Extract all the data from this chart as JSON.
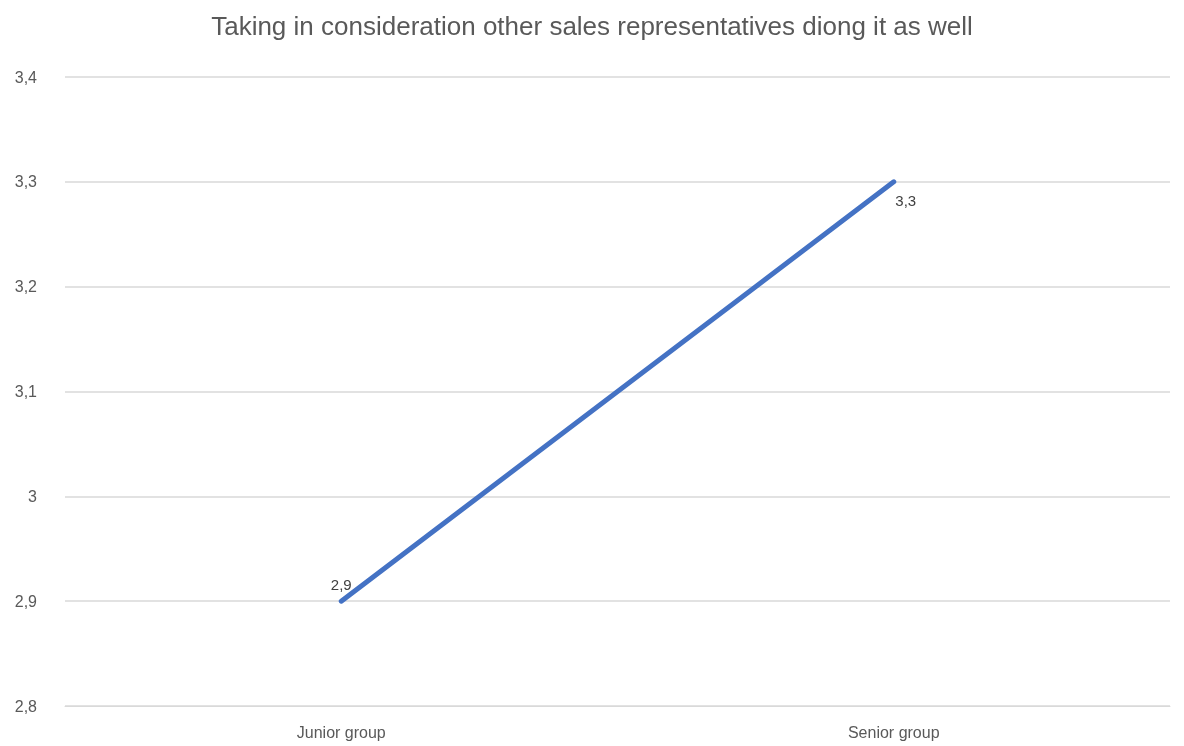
{
  "chart_data": {
    "type": "line",
    "title": "Taking in consideration other sales representatives diong it as well",
    "categories": [
      "Junior group",
      "Senior group"
    ],
    "series": [
      {
        "color": "#4472c4",
        "values": [
          2.9,
          3.3
        ],
        "value_labels": [
          "2,9",
          "3,3"
        ]
      }
    ],
    "ylim": [
      2.8,
      3.4
    ],
    "yticks": [
      {
        "value": 2.8,
        "label": "2,8"
      },
      {
        "value": 2.9,
        "label": "2,9"
      },
      {
        "value": 3,
        "label": "3"
      },
      {
        "value": 3.1,
        "label": "3,1"
      },
      {
        "value": 3.2,
        "label": "3,2"
      },
      {
        "value": 3.3,
        "label": "3,3"
      },
      {
        "value": 3.4,
        "label": "3,4"
      }
    ],
    "grid": "y",
    "marker": "none",
    "line_style": "solid"
  }
}
